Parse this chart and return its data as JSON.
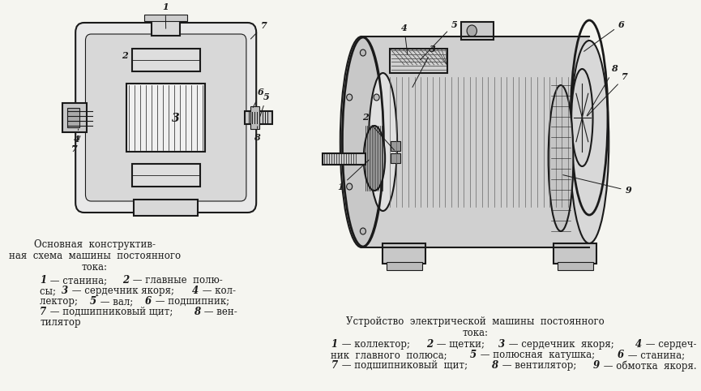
{
  "bg_color": "#f5f5f0",
  "fig_width": 8.65,
  "fig_height": 4.82,
  "left_caption_title": "Основная  конструктив-\nная  схема  машины  постоянного\nтока:",
  "left_caption_body": "— станина;  2 — главные  полю-\nсы; 3 — сердечник якоря; 4 — кол-\nлектор;  5 — вал;  6 — подшипник;\n7 — подшипниковый щит; 8 — вен-\nтилятор",
  "left_caption_italic_nums": [
    "1"
  ],
  "right_caption_title": "Устройство  электрической  машины  постоянного\nтока:",
  "right_caption_body": "— коллектор;  2 — щетки;  3 — сердечник  якоря;  4 — сердеч-\nник  главного  полюса;  5 — полюсная  катушка;  6 — станина;\n7 — подшипниковый  щит;  8 — вентилятор;  9 — обмотка  якоря.",
  "text_color": "#1a1a1a",
  "diagram_bg": "#ffffff",
  "line_color": "#1a1a1a"
}
